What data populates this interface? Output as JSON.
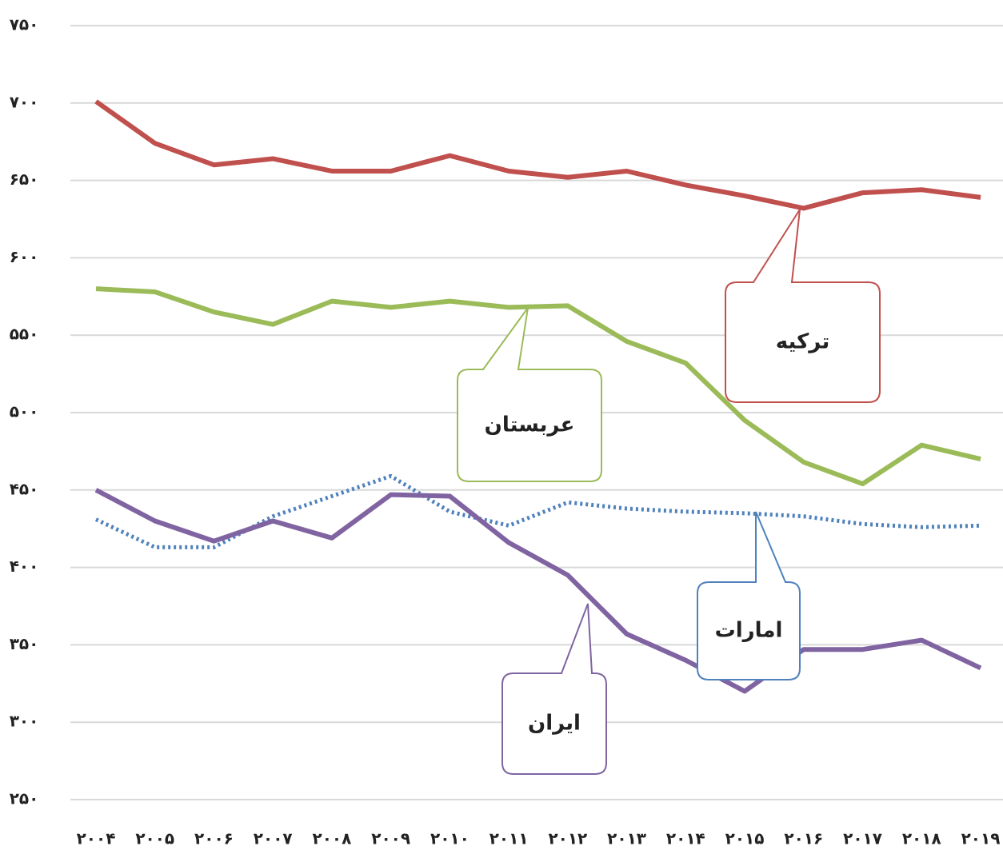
{
  "chart_data": {
    "type": "line",
    "categories": [
      "۲۰۰۴",
      "۲۰۰۵",
      "۲۰۰۶",
      "۲۰۰۷",
      "۲۰۰۸",
      "۲۰۰۹",
      "۲۰۱۰",
      "۲۰۱۱",
      "۲۰۱۲",
      "۲۰۱۳",
      "۲۰۱۴",
      "۲۰۱۵",
      "۲۰۱۶",
      "۲۰۱۷",
      "۲۰۱۸",
      "۲۰۱۹"
    ],
    "series": [
      {
        "name": "ترکیه",
        "color": "#c0504d",
        "values": [
          701,
          674,
          660,
          664,
          656,
          656,
          666,
          656,
          652,
          656,
          647,
          640,
          632,
          642,
          644,
          639
        ]
      },
      {
        "name": "عربستان",
        "color": "#9bbb59",
        "values": [
          580,
          578,
          565,
          557,
          572,
          568,
          572,
          568,
          569,
          546,
          532,
          495,
          468,
          454,
          479,
          470
        ]
      },
      {
        "name": "امارات",
        "color": "#4f81bd",
        "dashed": true,
        "values": [
          431,
          413,
          413,
          433,
          446,
          459,
          436,
          427,
          442,
          438,
          436,
          435,
          433,
          428,
          426,
          427
        ]
      },
      {
        "name": "ایران",
        "color": "#8064a2",
        "values": [
          450,
          430,
          417,
          430,
          419,
          447,
          446,
          416,
          395,
          357,
          340,
          320,
          347,
          347,
          353,
          335
        ]
      }
    ],
    "ylim": [
      250,
      750
    ],
    "yticks": [
      {
        "value": 250,
        "label": "۲۵۰"
      },
      {
        "value": 300,
        "label": "۳۰۰"
      },
      {
        "value": 350,
        "label": "۳۵۰"
      },
      {
        "value": 400,
        "label": "۴۰۰"
      },
      {
        "value": 450,
        "label": "۴۵۰"
      },
      {
        "value": 500,
        "label": "۵۰۰"
      },
      {
        "value": 550,
        "label": "۵۵۰"
      },
      {
        "value": 600,
        "label": "۶۰۰"
      },
      {
        "value": 650,
        "label": "۶۵۰"
      },
      {
        "value": 700,
        "label": "۷۰۰"
      },
      {
        "value": 750,
        "label": "۷۵۰"
      }
    ],
    "grid": true
  }
}
